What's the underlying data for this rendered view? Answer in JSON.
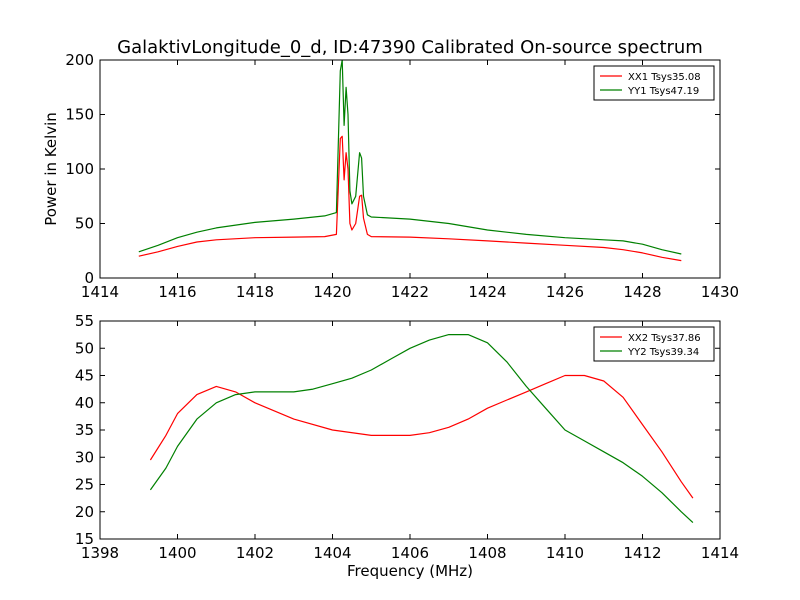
{
  "figure": {
    "title": "GalaktivLongitude_0_d, ID:47390 Calibrated On-source spectrum"
  },
  "chart_data": [
    {
      "type": "line",
      "title": "GalaktivLongitude_0_d, ID:47390 Calibrated On-source spectrum",
      "xlabel": "",
      "ylabel": "Power in Kelvin",
      "xlim": [
        1414,
        1430
      ],
      "ylim": [
        0,
        200
      ],
      "xticks": [
        "1414",
        "1416",
        "1418",
        "1420",
        "1422",
        "1424",
        "1426",
        "1428",
        "1430"
      ],
      "yticks": [
        "0",
        "50",
        "100",
        "150",
        "200"
      ],
      "grid": false,
      "legend_position": "top-right",
      "series": [
        {
          "name": "XX1 Tsys35.08",
          "color": "#ff0000",
          "x": [
            1415.0,
            1415.5,
            1416.0,
            1416.5,
            1417.0,
            1418.0,
            1419.0,
            1419.8,
            1420.1,
            1420.2,
            1420.25,
            1420.3,
            1420.35,
            1420.4,
            1420.45,
            1420.5,
            1420.6,
            1420.7,
            1420.75,
            1420.8,
            1420.9,
            1421.0,
            1422.0,
            1423.0,
            1424.0,
            1425.0,
            1426.0,
            1427.0,
            1427.5,
            1428.0,
            1428.5,
            1429.0
          ],
          "values": [
            20,
            24,
            29,
            33,
            35,
            37,
            37.5,
            38,
            40,
            128,
            130,
            90,
            115,
            100,
            50,
            44,
            50,
            75,
            76,
            55,
            40,
            38,
            37.5,
            36,
            34,
            32,
            30,
            28,
            26,
            23,
            19,
            16
          ]
        },
        {
          "name": "YY1 Tsys47.19",
          "color": "#008000",
          "x": [
            1415.0,
            1415.5,
            1416.0,
            1416.5,
            1417.0,
            1418.0,
            1419.0,
            1419.8,
            1420.1,
            1420.2,
            1420.25,
            1420.3,
            1420.35,
            1420.4,
            1420.45,
            1420.5,
            1420.6,
            1420.7,
            1420.75,
            1420.8,
            1420.9,
            1421.0,
            1422.0,
            1423.0,
            1424.0,
            1425.0,
            1426.0,
            1427.0,
            1427.5,
            1428.0,
            1428.5,
            1429.0
          ],
          "values": [
            24,
            30,
            37,
            42,
            46,
            51,
            54,
            57,
            60,
            190,
            200,
            140,
            175,
            150,
            80,
            68,
            75,
            115,
            110,
            75,
            58,
            56,
            54,
            50,
            44,
            40,
            37,
            35,
            34,
            31,
            26,
            22
          ]
        }
      ]
    },
    {
      "type": "line",
      "title": "",
      "xlabel": "Frequency (MHz)",
      "ylabel": "",
      "xlim": [
        1398,
        1414
      ],
      "ylim": [
        15,
        55
      ],
      "xticks": [
        "1398",
        "1400",
        "1402",
        "1404",
        "1406",
        "1408",
        "1410",
        "1412",
        "1414"
      ],
      "yticks": [
        "15",
        "20",
        "25",
        "30",
        "35",
        "40",
        "45",
        "50",
        "55"
      ],
      "grid": false,
      "legend_position": "top-right",
      "series": [
        {
          "name": "XX2 Tsys37.86",
          "color": "#ff0000",
          "x": [
            1399.3,
            1399.7,
            1400.0,
            1400.5,
            1401.0,
            1401.5,
            1402.0,
            1402.5,
            1403.0,
            1404.0,
            1405.0,
            1406.0,
            1406.5,
            1407.0,
            1407.5,
            1408.0,
            1408.5,
            1409.0,
            1409.5,
            1410.0,
            1410.5,
            1411.0,
            1411.5,
            1412.0,
            1412.5,
            1413.0,
            1413.3
          ],
          "values": [
            29.5,
            34,
            38,
            41.5,
            43,
            42,
            40,
            38.5,
            37,
            35,
            34,
            34,
            34.5,
            35.5,
            37,
            39,
            40.5,
            42,
            43.5,
            45,
            45,
            44,
            41,
            36,
            31,
            25.5,
            22.5
          ]
        },
        {
          "name": "YY2 Tsys39.34",
          "color": "#008000",
          "x": [
            1399.3,
            1399.7,
            1400.0,
            1400.5,
            1401.0,
            1401.5,
            1402.0,
            1402.5,
            1403.0,
            1403.5,
            1404.0,
            1404.5,
            1405.0,
            1405.5,
            1406.0,
            1406.5,
            1407.0,
            1407.5,
            1408.0,
            1408.5,
            1409.0,
            1409.5,
            1410.0,
            1410.5,
            1411.0,
            1411.5,
            1412.0,
            1412.5,
            1413.0,
            1413.3
          ],
          "values": [
            24,
            28,
            32,
            37,
            40,
            41.5,
            42,
            42,
            42,
            42.5,
            43.5,
            44.5,
            46,
            48,
            50,
            51.5,
            52.5,
            52.5,
            51,
            47.5,
            43,
            39,
            35,
            33,
            31,
            29,
            26.5,
            23.5,
            20,
            18
          ]
        }
      ]
    }
  ]
}
